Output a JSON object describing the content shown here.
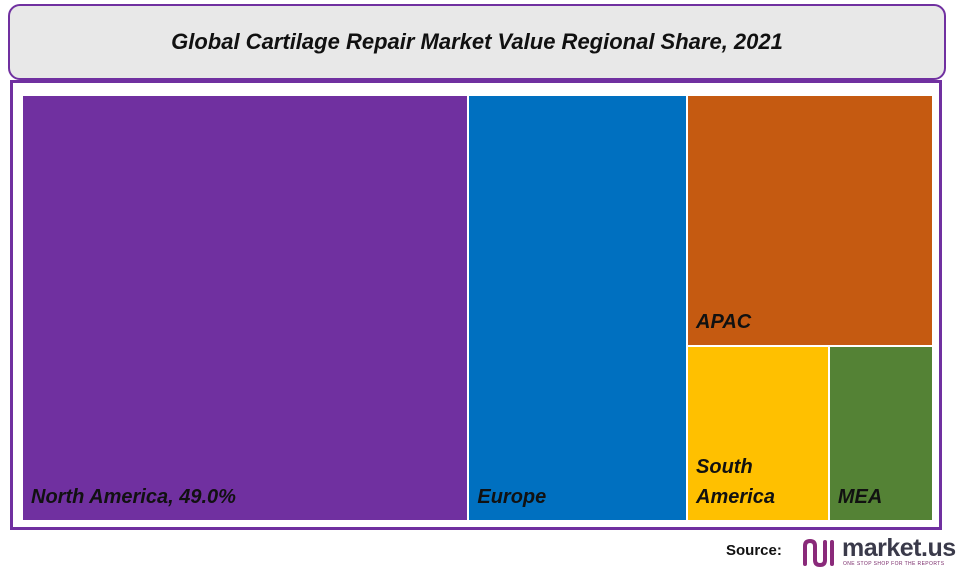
{
  "chart_data": {
    "type": "treemap",
    "title": "Global Cartilage Repair Market Value Regional Share, 2021",
    "categories": [
      "North America",
      "Europe",
      "APAC",
      "South America",
      "MEA"
    ],
    "values": [
      49.0,
      24.0,
      15.9,
      6.4,
      4.7
    ],
    "value_labels": [
      "49.0%",
      null,
      null,
      null,
      null
    ],
    "colors": [
      "#7030a0",
      "#0070c0",
      "#c55a11",
      "#ffc000",
      "#548235"
    ]
  },
  "footer": {
    "source_label": "Source:",
    "logo_text": "market.us",
    "logo_tagline": "ONE STOP SHOP FOR THE REPORTS"
  }
}
